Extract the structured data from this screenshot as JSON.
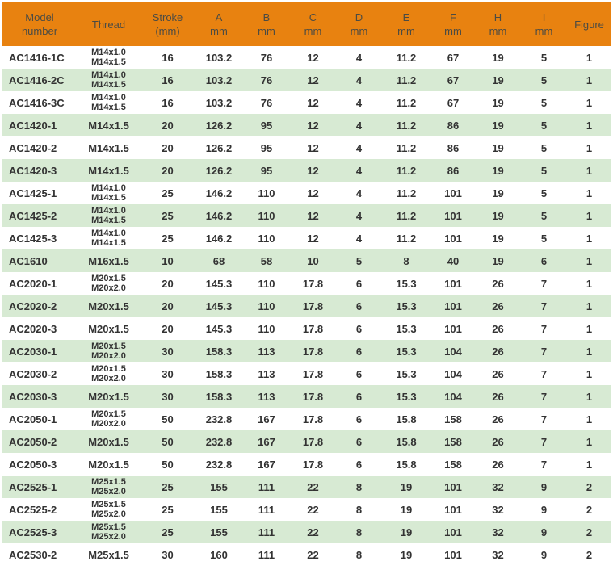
{
  "table": {
    "colors": {
      "header_bg": "#E88210",
      "header_text": "#4B4B44",
      "row_bg": "#FFFFFF",
      "row_alt_bg": "#D7EAD3",
      "cell_text": "#333333"
    },
    "columns": [
      {
        "line1": "Model",
        "line2": "number"
      },
      {
        "line1": "Thread"
      },
      {
        "line1": "Stroke",
        "line2": "(mm)"
      },
      {
        "line1": "A",
        "line2": "mm"
      },
      {
        "line1": "B",
        "line2": "mm"
      },
      {
        "line1": "C",
        "line2": "mm"
      },
      {
        "line1": "D",
        "line2": "mm"
      },
      {
        "line1": "E",
        "line2": "mm"
      },
      {
        "line1": "F",
        "line2": "mm"
      },
      {
        "line1": "H",
        "line2": "mm"
      },
      {
        "line1": "I",
        "line2": "mm"
      },
      {
        "line1": "Figure"
      }
    ],
    "rows": [
      {
        "model": "AC1416-1C",
        "thread": [
          "M14x1.0",
          "M14x1.5"
        ],
        "values": [
          "16",
          "103.2",
          "76",
          "12",
          "4",
          "11.2",
          "67",
          "19",
          "5",
          "1"
        ]
      },
      {
        "model": "AC1416-2C",
        "thread": [
          "M14x1.0",
          "M14x1.5"
        ],
        "values": [
          "16",
          "103.2",
          "76",
          "12",
          "4",
          "11.2",
          "67",
          "19",
          "5",
          "1"
        ]
      },
      {
        "model": "AC1416-3C",
        "thread": [
          "M14x1.0",
          "M14x1.5"
        ],
        "values": [
          "16",
          "103.2",
          "76",
          "12",
          "4",
          "11.2",
          "67",
          "19",
          "5",
          "1"
        ]
      },
      {
        "model": "AC1420-1",
        "thread": [
          "M14x1.5"
        ],
        "values": [
          "20",
          "126.2",
          "95",
          "12",
          "4",
          "11.2",
          "86",
          "19",
          "5",
          "1"
        ]
      },
      {
        "model": "AC1420-2",
        "thread": [
          "M14x1.5"
        ],
        "values": [
          "20",
          "126.2",
          "95",
          "12",
          "4",
          "11.2",
          "86",
          "19",
          "5",
          "1"
        ]
      },
      {
        "model": "AC1420-3",
        "thread": [
          "M14x1.5"
        ],
        "values": [
          "20",
          "126.2",
          "95",
          "12",
          "4",
          "11.2",
          "86",
          "19",
          "5",
          "1"
        ]
      },
      {
        "model": "AC1425-1",
        "thread": [
          "M14x1.0",
          "M14x1.5"
        ],
        "values": [
          "25",
          "146.2",
          "110",
          "12",
          "4",
          "11.2",
          "101",
          "19",
          "5",
          "1"
        ]
      },
      {
        "model": "AC1425-2",
        "thread": [
          "M14x1.0",
          "M14x1.5"
        ],
        "values": [
          "25",
          "146.2",
          "110",
          "12",
          "4",
          "11.2",
          "101",
          "19",
          "5",
          "1"
        ]
      },
      {
        "model": "AC1425-3",
        "thread": [
          "M14x1.0",
          "M14x1.5"
        ],
        "values": [
          "25",
          "146.2",
          "110",
          "12",
          "4",
          "11.2",
          "101",
          "19",
          "5",
          "1"
        ]
      },
      {
        "model": "AC1610",
        "thread": [
          "M16x1.5"
        ],
        "values": [
          "10",
          "68",
          "58",
          "10",
          "5",
          "8",
          "40",
          "19",
          "6",
          "1"
        ]
      },
      {
        "model": "AC2020-1",
        "thread": [
          "M20x1.5",
          "M20x2.0"
        ],
        "values": [
          "20",
          "145.3",
          "110",
          "17.8",
          "6",
          "15.3",
          "101",
          "26",
          "7",
          "1"
        ]
      },
      {
        "model": "AC2020-2",
        "thread": [
          "M20x1.5"
        ],
        "values": [
          "20",
          "145.3",
          "110",
          "17.8",
          "6",
          "15.3",
          "101",
          "26",
          "7",
          "1"
        ]
      },
      {
        "model": "AC2020-3",
        "thread": [
          "M20x1.5"
        ],
        "values": [
          "20",
          "145.3",
          "110",
          "17.8",
          "6",
          "15.3",
          "101",
          "26",
          "7",
          "1"
        ]
      },
      {
        "model": "AC2030-1",
        "thread": [
          "M20x1.5",
          "M20x2.0"
        ],
        "values": [
          "30",
          "158.3",
          "113",
          "17.8",
          "6",
          "15.3",
          "104",
          "26",
          "7",
          "1"
        ]
      },
      {
        "model": "AC2030-2",
        "thread": [
          "M20x1.5",
          "M20x2.0"
        ],
        "values": [
          "30",
          "158.3",
          "113",
          "17.8",
          "6",
          "15.3",
          "104",
          "26",
          "7",
          "1"
        ]
      },
      {
        "model": "AC2030-3",
        "thread": [
          "M20x1.5"
        ],
        "values": [
          "30",
          "158.3",
          "113",
          "17.8",
          "6",
          "15.3",
          "104",
          "26",
          "7",
          "1"
        ]
      },
      {
        "model": "AC2050-1",
        "thread": [
          "M20x1.5",
          "M20x2.0"
        ],
        "values": [
          "50",
          "232.8",
          "167",
          "17.8",
          "6",
          "15.8",
          "158",
          "26",
          "7",
          "1"
        ]
      },
      {
        "model": "AC2050-2",
        "thread": [
          "M20x1.5"
        ],
        "values": [
          "50",
          "232.8",
          "167",
          "17.8",
          "6",
          "15.8",
          "158",
          "26",
          "7",
          "1"
        ]
      },
      {
        "model": "AC2050-3",
        "thread": [
          "M20x1.5"
        ],
        "values": [
          "50",
          "232.8",
          "167",
          "17.8",
          "6",
          "15.8",
          "158",
          "26",
          "7",
          "1"
        ]
      },
      {
        "model": "AC2525-1",
        "thread": [
          "M25x1.5",
          "M25x2.0"
        ],
        "values": [
          "25",
          "155",
          "111",
          "22",
          "8",
          "19",
          "101",
          "32",
          "9",
          "2"
        ]
      },
      {
        "model": "AC2525-2",
        "thread": [
          "M25x1.5",
          "M25x2.0"
        ],
        "values": [
          "25",
          "155",
          "111",
          "22",
          "8",
          "19",
          "101",
          "32",
          "9",
          "2"
        ]
      },
      {
        "model": "AC2525-3",
        "thread": [
          "M25x1.5",
          "M25x2.0"
        ],
        "values": [
          "25",
          "155",
          "111",
          "22",
          "8",
          "19",
          "101",
          "32",
          "9",
          "2"
        ]
      },
      {
        "model": "AC2530-2",
        "thread": [
          "M25x1.5"
        ],
        "values": [
          "30",
          "160",
          "111",
          "22",
          "8",
          "19",
          "101",
          "32",
          "9",
          "2"
        ]
      }
    ]
  }
}
